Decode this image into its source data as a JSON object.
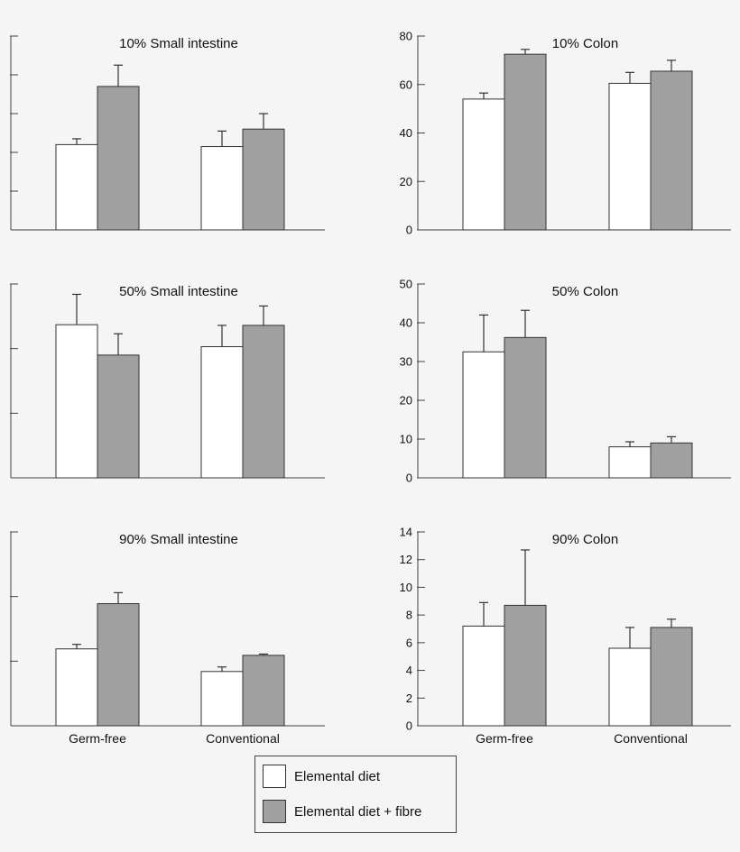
{
  "chart_data": [
    {
      "type": "bar",
      "title": "10% Small intestine",
      "categories": [
        "Germ-free",
        "Conventional"
      ],
      "series": [
        {
          "name": "Elemental diet",
          "values": [
            22,
            21.5
          ],
          "errors": [
            1.5,
            4
          ]
        },
        {
          "name": "Elemental diet + fibre",
          "values": [
            37,
            26
          ],
          "errors": [
            5.5,
            4
          ]
        }
      ],
      "ylim": [
        0,
        50
      ],
      "yticks": [
        10,
        20,
        30,
        40,
        50
      ],
      "show_tick_labels": false,
      "show_category_labels": false
    },
    {
      "type": "bar",
      "title": "10% Colon",
      "categories": [
        "Germ-free",
        "Conventional"
      ],
      "series": [
        {
          "name": "Elemental diet",
          "values": [
            54,
            60.5
          ],
          "errors": [
            2.5,
            4.5
          ]
        },
        {
          "name": "Elemental diet + fibre",
          "values": [
            72.5,
            65.5
          ],
          "errors": [
            2,
            4.5
          ]
        }
      ],
      "ylim": [
        0,
        80
      ],
      "yticks": [
        0,
        20,
        40,
        60,
        80
      ],
      "show_tick_labels": true,
      "show_category_labels": false
    },
    {
      "type": "bar",
      "title": "50% Small intestine",
      "categories": [
        "Germ-free",
        "Conventional"
      ],
      "series": [
        {
          "name": "Elemental diet",
          "values": [
            23.7,
            20.3
          ],
          "errors": [
            4.7,
            3.3
          ]
        },
        {
          "name": "Elemental diet + fibre",
          "values": [
            19,
            23.6
          ],
          "errors": [
            3.3,
            3
          ]
        }
      ],
      "ylim": [
        0,
        30
      ],
      "yticks": [
        10,
        20,
        30
      ],
      "show_tick_labels": false,
      "show_category_labels": false
    },
    {
      "type": "bar",
      "title": "50% Colon",
      "categories": [
        "Germ-free",
        "Conventional"
      ],
      "series": [
        {
          "name": "Elemental diet",
          "values": [
            32.5,
            8
          ],
          "errors": [
            9.5,
            1.3
          ]
        },
        {
          "name": "Elemental diet + fibre",
          "values": [
            36.2,
            9
          ],
          "errors": [
            7,
            1.6
          ]
        }
      ],
      "ylim": [
        0,
        50
      ],
      "yticks": [
        0,
        10,
        20,
        30,
        40,
        50
      ],
      "show_tick_labels": true,
      "show_category_labels": false
    },
    {
      "type": "bar",
      "title": "90% Small intestine",
      "categories": [
        "Germ-free",
        "Conventional"
      ],
      "series": [
        {
          "name": "Elemental diet",
          "values": [
            11.9,
            8.4
          ],
          "errors": [
            0.7,
            0.7
          ]
        },
        {
          "name": "Elemental diet + fibre",
          "values": [
            18.9,
            10.9
          ],
          "errors": [
            1.7,
            0.2
          ]
        }
      ],
      "ylim": [
        0,
        30
      ],
      "yticks": [
        10,
        20,
        30
      ],
      "show_tick_labels": false,
      "show_category_labels": true
    },
    {
      "type": "bar",
      "title": "90% Colon",
      "categories": [
        "Germ-free",
        "Conventional"
      ],
      "series": [
        {
          "name": "Elemental diet",
          "values": [
            7.2,
            5.6
          ],
          "errors": [
            1.7,
            1.5
          ]
        },
        {
          "name": "Elemental diet + fibre",
          "values": [
            8.7,
            7.1
          ],
          "errors": [
            4,
            0.6
          ]
        }
      ],
      "ylim": [
        0,
        14
      ],
      "yticks": [
        0,
        2,
        4,
        6,
        8,
        10,
        12,
        14
      ],
      "show_tick_labels": true,
      "show_category_labels": true
    }
  ],
  "legend": {
    "items": [
      {
        "label": "Elemental diet",
        "color": "#ffffff"
      },
      {
        "label": "Elemental diet + fibre",
        "color": "#a0a0a0"
      }
    ]
  },
  "colors": {
    "series": [
      "#ffffff",
      "#a0a0a0"
    ],
    "stroke": "#333333"
  }
}
